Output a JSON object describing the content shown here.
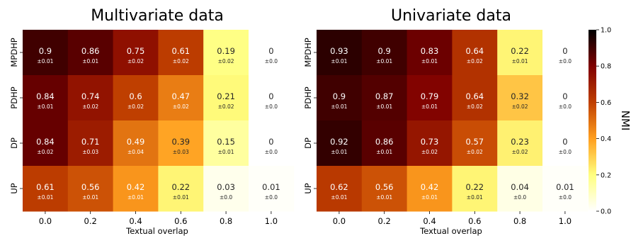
{
  "chart_data": [
    {
      "type": "heatmap",
      "title": "Multivariate data",
      "xlabel": "Textual overlap",
      "ylabel": "",
      "x": [
        "0.0",
        "0.2",
        "0.4",
        "0.6",
        "0.8",
        "1.0"
      ],
      "y": [
        "MPDHP",
        "PDHP",
        "DP",
        "UP"
      ],
      "values": [
        [
          0.9,
          0.86,
          0.75,
          0.61,
          0.19,
          0
        ],
        [
          0.84,
          0.74,
          0.6,
          0.47,
          0.21,
          0
        ],
        [
          0.84,
          0.71,
          0.49,
          0.39,
          0.15,
          0
        ],
        [
          0.61,
          0.56,
          0.42,
          0.22,
          0.03,
          0.01
        ]
      ],
      "value_labels": [
        [
          "0.9",
          "0.86",
          "0.75",
          "0.61",
          "0.19",
          "0"
        ],
        [
          "0.84",
          "0.74",
          "0.6",
          "0.47",
          "0.21",
          "0"
        ],
        [
          "0.84",
          "0.71",
          "0.49",
          "0.39",
          "0.15",
          "0"
        ],
        [
          "0.61",
          "0.56",
          "0.42",
          "0.22",
          "0.03",
          "0.01"
        ]
      ],
      "error_labels": [
        [
          "±0.01",
          "±0.01",
          "±0.02",
          "±0.02",
          "±0.02",
          "±0.0"
        ],
        [
          "±0.01",
          "±0.02",
          "±0.02",
          "±0.02",
          "±0.02",
          "±0.0"
        ],
        [
          "±0.02",
          "±0.03",
          "±0.04",
          "±0.03",
          "±0.01",
          "±0.0"
        ],
        [
          "±0.01",
          "±0.01",
          "±0.01",
          "±0.01",
          "±0.0",
          "±0.0"
        ]
      ]
    },
    {
      "type": "heatmap",
      "title": "Univariate data",
      "xlabel": "Textual overlap",
      "ylabel": "",
      "x": [
        "0.0",
        "0.2",
        "0.4",
        "0.6",
        "0.8",
        "1.0"
      ],
      "y": [
        "MPDHP",
        "PDHP",
        "DP",
        "UP"
      ],
      "values": [
        [
          0.93,
          0.9,
          0.83,
          0.64,
          0.22,
          0
        ],
        [
          0.9,
          0.87,
          0.79,
          0.64,
          0.32,
          0
        ],
        [
          0.92,
          0.86,
          0.73,
          0.57,
          0.23,
          0
        ],
        [
          0.62,
          0.56,
          0.42,
          0.22,
          0.04,
          0.01
        ]
      ],
      "value_labels": [
        [
          "0.93",
          "0.9",
          "0.83",
          "0.64",
          "0.22",
          "0"
        ],
        [
          "0.9",
          "0.87",
          "0.79",
          "0.64",
          "0.32",
          "0"
        ],
        [
          "0.92",
          "0.86",
          "0.73",
          "0.57",
          "0.23",
          "0"
        ],
        [
          "0.62",
          "0.56",
          "0.42",
          "0.22",
          "0.04",
          "0.01"
        ]
      ],
      "error_labels": [
        [
          "±0.01",
          "±0.01",
          "±0.01",
          "±0.02",
          "±0.01",
          "±0.0"
        ],
        [
          "±0.01",
          "±0.01",
          "±0.01",
          "±0.02",
          "±0.02",
          "±0.0"
        ],
        [
          "±0.01",
          "±0.01",
          "±0.02",
          "±0.02",
          "±0.02",
          "±0.0"
        ],
        [
          "±0.01",
          "±0.01",
          "±0.01",
          "±0.01",
          "±0.0",
          "±0.0"
        ]
      ]
    }
  ],
  "colorbar": {
    "label": "NMI",
    "range": [
      0.0,
      1.0
    ],
    "ticks": [
      "0.0",
      "0.2",
      "0.4",
      "0.6",
      "0.8",
      "1.0"
    ],
    "colormap": "afmhot_r",
    "colors": [
      "#ffffff",
      "#ffff7f",
      "#ff9f1f",
      "#bf3f00",
      "#7f0000",
      "#000000"
    ]
  }
}
